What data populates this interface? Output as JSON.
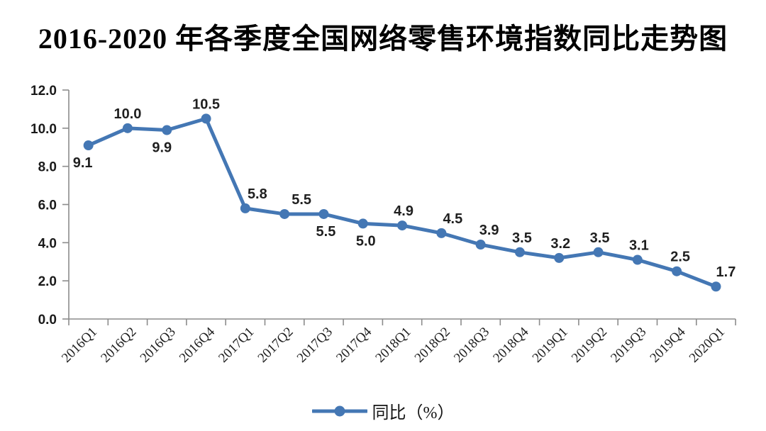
{
  "title": "2016-2020 年各季度全国网络零售环境指数同比走势图",
  "legend": {
    "label": "同比（%）"
  },
  "colors": {
    "line": "#4477b4",
    "marker": "#4477b4",
    "axis": "#8c8c8c",
    "tick": "#8c8c8c",
    "data_label": "#1f1f1f",
    "background": "#ffffff"
  },
  "chart_data": {
    "type": "line",
    "title": "2016-2020 年各季度全国网络零售环境指数同比走势图",
    "categories": [
      "2016Q1",
      "2016Q2",
      "2016Q3",
      "2016Q4",
      "2017Q1",
      "2017Q2",
      "2017Q3",
      "2017Q4",
      "2018Q1",
      "2018Q2",
      "2018Q3",
      "2018Q4",
      "2019Q1",
      "2019Q2",
      "2019Q3",
      "2019Q4",
      "2020Q1"
    ],
    "series": [
      {
        "name": "同比（%）",
        "values": [
          9.1,
          10.0,
          9.9,
          10.5,
          5.8,
          5.5,
          5.5,
          5.0,
          4.9,
          4.5,
          3.9,
          3.5,
          3.2,
          3.5,
          3.1,
          2.5,
          1.7
        ]
      }
    ],
    "xlabel": "",
    "ylabel": "",
    "ylim": [
      0,
      12
    ],
    "ytick_step": 2,
    "ytick_labels": [
      "0.0",
      "2.0",
      "4.0",
      "6.0",
      "8.0",
      "10.0",
      "12.0"
    ],
    "grid": false,
    "legend_position": "bottom",
    "data_labels": true,
    "label_sides": [
      "below",
      "above",
      "below",
      "above",
      "above",
      "above",
      "below",
      "below",
      "above",
      "above",
      "above",
      "above",
      "above",
      "above",
      "above",
      "above",
      "above"
    ],
    "label_dx": [
      -8,
      0,
      -7,
      0,
      17,
      24,
      3,
      4,
      2,
      16,
      12,
      3,
      2,
      2,
      2,
      5,
      14
    ],
    "x_tick_rotation": -45
  }
}
